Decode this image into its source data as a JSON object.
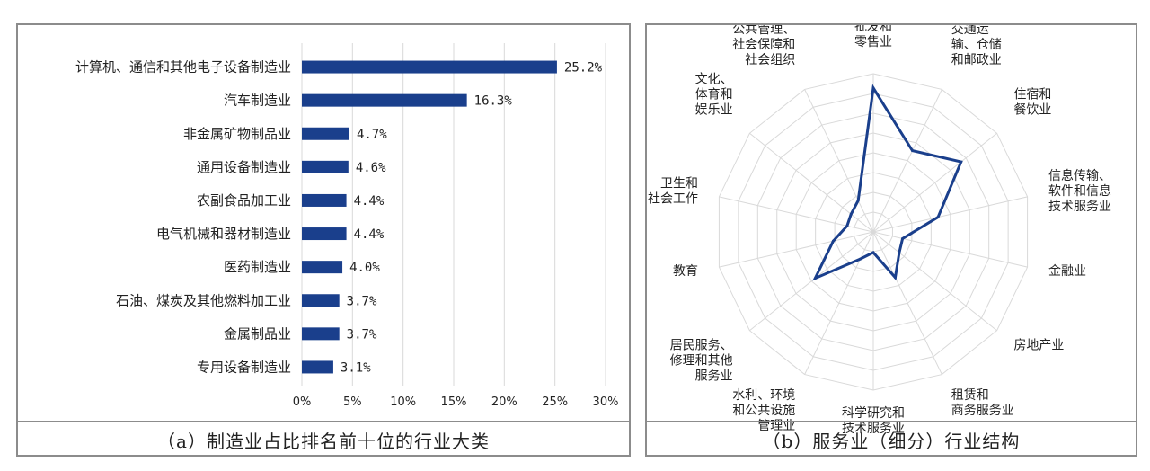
{
  "colors": {
    "bar": "#1a3f8c",
    "line": "#1a3f8c",
    "grid": "#d9d9d9"
  },
  "panel_a": {
    "caption": "（a）制造业占比排名前十位的行业大类"
  },
  "panel_b": {
    "caption": "（b）服务业（细分）行业结构"
  },
  "chart_data": [
    {
      "type": "bar",
      "orientation": "horizontal",
      "categories": [
        "计算机、通信和其他电子设备制造业",
        "汽车制造业",
        "非金属矿物制品业",
        "通用设备制造业",
        "农副食品加工业",
        "电气机械和器材制造业",
        "医药制造业",
        "石油、煤炭及其他燃料加工业",
        "金属制品业",
        "专用设备制造业"
      ],
      "values": [
        25.2,
        16.3,
        4.7,
        4.6,
        4.4,
        4.4,
        4.0,
        3.7,
        3.7,
        3.1
      ],
      "value_labels": [
        "25.2%",
        "16.3%",
        "4.7%",
        "4.6%",
        "4.4%",
        "4.4%",
        "4.0%",
        "3.7%",
        "3.7%",
        "3.1%"
      ],
      "xticks": [
        "0%",
        "5%",
        "10%",
        "15%",
        "20%",
        "25%",
        "30%"
      ],
      "xlim": [
        0,
        30
      ],
      "grid": true
    },
    {
      "type": "radar",
      "categories": [
        [
          "批发和",
          "零售业"
        ],
        [
          "交通运",
          "输、仓储",
          "和邮政业"
        ],
        [
          "住宿和",
          "餐饮业"
        ],
        [
          "信息传输、",
          "软件和信息",
          "技术服务业"
        ],
        [
          "金融业"
        ],
        [
          "房地产业"
        ],
        [
          "租赁和",
          "商务服务业"
        ],
        [
          "科学研究和",
          "技术服务业"
        ],
        [
          "水利、环境",
          "和公共设施",
          "管理业"
        ],
        [
          "居民服务、",
          "修理和其他",
          "服务业"
        ],
        [
          "教育"
        ],
        [
          "卫生和",
          "社会工作"
        ],
        [
          "文化、",
          "体育和",
          "娱乐业"
        ],
        [
          "公共管理、",
          "社会保障和",
          "社会组织"
        ]
      ],
      "values": [
        0.91,
        0.57,
        0.71,
        0.42,
        0.19,
        0.21,
        0.32,
        0.13,
        0.19,
        0.47,
        0.26,
        0.17,
        0.18,
        0.22
      ],
      "rmax": 1.0,
      "rings": 8,
      "grid": true
    }
  ]
}
